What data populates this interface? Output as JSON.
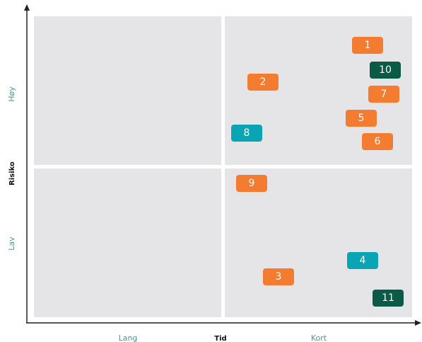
{
  "axes": {
    "y_title": "Risiko",
    "y_high": "Høy",
    "y_low": "Lav",
    "x_title": "Tid",
    "x_left": "Lang",
    "x_right": "Kort"
  },
  "nodes": [
    {
      "label": "1",
      "color": "#f47c30"
    },
    {
      "label": "10",
      "color": "#0b5a47"
    },
    {
      "label": "2",
      "color": "#f47c30"
    },
    {
      "label": "7",
      "color": "#f47c30"
    },
    {
      "label": "5",
      "color": "#f47c30"
    },
    {
      "label": "8",
      "color": "#0aa5b5"
    },
    {
      "label": "6",
      "color": "#f47c30"
    },
    {
      "label": "9",
      "color": "#f47c30"
    },
    {
      "label": "4",
      "color": "#0aa5b5"
    },
    {
      "label": "3",
      "color": "#f47c30"
    },
    {
      "label": "11",
      "color": "#0b5a47"
    }
  ]
}
